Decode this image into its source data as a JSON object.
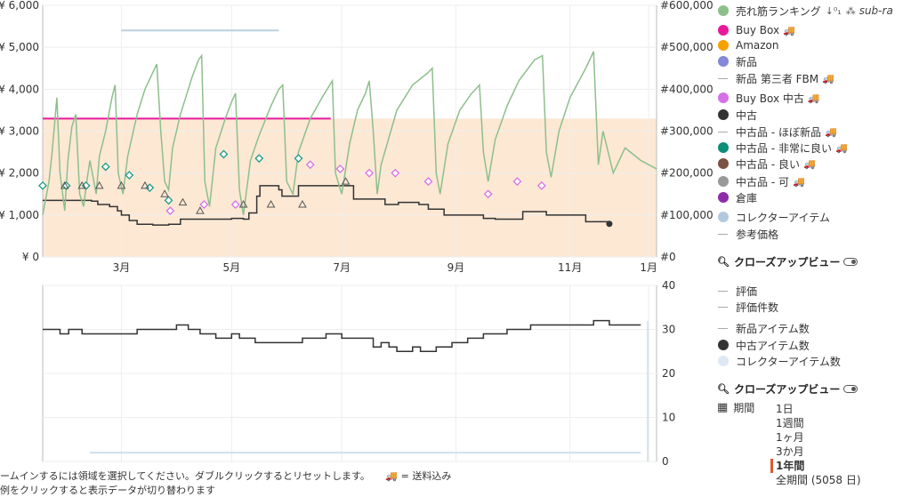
{
  "chart_data": [
    {
      "type": "line",
      "title": "",
      "x_ticks": [
        "3月",
        "5月",
        "7月",
        "9月",
        "11月",
        "1月"
      ],
      "y_left_ticks": [
        "¥ 0",
        "¥ 1,000",
        "¥ 2,000",
        "¥ 3,000",
        "¥ 4,000",
        "¥ 5,000",
        "¥ 6,000"
      ],
      "y_left_range": [
        0,
        6000
      ],
      "y_right_ticks": [
        "#0",
        "#100,000",
        "#200,000",
        "#300,000",
        "#400,000",
        "#500,000",
        "#600,000"
      ],
      "y_right_range": [
        0,
        600000
      ],
      "x_range_days": [
        0,
        366
      ],
      "grid": true,
      "series": [
        {
          "name": "Buy Box",
          "axis": "left",
          "color": "#e6199b",
          "points": [
            [
              0,
              3300
            ],
            [
              366,
              3300
            ]
          ]
        },
        {
          "name": "中古",
          "axis": "left",
          "color": "#333333",
          "points": [
            [
              0,
              1350
            ],
            [
              45,
              1350
            ],
            [
              62,
              1330
            ],
            [
              70,
              1250
            ],
            [
              85,
              1200
            ],
            [
              95,
              1100
            ],
            [
              100,
              1000
            ],
            [
              110,
              870
            ],
            [
              120,
              780
            ],
            [
              140,
              760
            ],
            [
              160,
              780
            ],
            [
              175,
              900
            ],
            [
              240,
              920
            ],
            [
              255,
              900
            ],
            [
              262,
              1050
            ],
            [
              272,
              1450
            ],
            [
              276,
              1700
            ],
            [
              300,
              1600
            ],
            [
              304,
              1450
            ],
            [
              325,
              1700
            ],
            [
              390,
              1700
            ],
            [
              395,
              1380
            ],
            [
              430,
              1380
            ],
            [
              435,
              1250
            ],
            [
              452,
              1300
            ],
            [
              478,
              1250
            ],
            [
              490,
              1140
            ],
            [
              510,
              1000
            ],
            [
              548,
              1000
            ],
            [
              560,
              920
            ],
            [
              575,
              900
            ],
            [
              605,
              900
            ],
            [
              610,
              1080
            ],
            [
              635,
              1080
            ],
            [
              640,
              1000
            ],
            [
              666,
              1000
            ],
            [
              690,
              840
            ],
            [
              720,
              790
            ]
          ]
        },
        {
          "name": "売れ筋ランキング",
          "axis": "right",
          "color": "#8dbf8b",
          "points": [
            [
              0,
              100000
            ],
            [
              8,
              180000
            ],
            [
              12,
              250000
            ],
            [
              18,
              380000
            ],
            [
              22,
              200000
            ],
            [
              28,
              110000
            ],
            [
              32,
              230000
            ],
            [
              37,
              310000
            ],
            [
              42,
              340000
            ],
            [
              47,
              150000
            ],
            [
              52,
              120000
            ],
            [
              56,
              180000
            ],
            [
              60,
              230000
            ],
            [
              68,
              150000
            ],
            [
              72,
              240000
            ],
            [
              80,
              300000
            ],
            [
              88,
              380000
            ],
            [
              92,
              410000
            ],
            [
              96,
              200000
            ],
            [
              102,
              150000
            ],
            [
              108,
              240000
            ],
            [
              120,
              340000
            ],
            [
              130,
              400000
            ],
            [
              140,
              440000
            ],
            [
              145,
              460000
            ],
            [
              150,
              300000
            ],
            [
              155,
              180000
            ],
            [
              160,
              160000
            ],
            [
              165,
              260000
            ],
            [
              175,
              340000
            ],
            [
              190,
              430000
            ],
            [
              198,
              470000
            ],
            [
              202,
              480000
            ],
            [
              206,
              180000
            ],
            [
              212,
              120000
            ],
            [
              220,
              260000
            ],
            [
              232,
              330000
            ],
            [
              240,
              370000
            ],
            [
              245,
              390000
            ],
            [
              250,
              160000
            ],
            [
              255,
              100000
            ],
            [
              264,
              230000
            ],
            [
              275,
              290000
            ],
            [
              290,
              360000
            ],
            [
              300,
              400000
            ],
            [
              305,
              410000
            ],
            [
              310,
              180000
            ],
            [
              318,
              150000
            ],
            [
              325,
              250000
            ],
            [
              340,
              330000
            ],
            [
              355,
              380000
            ],
            [
              368,
              420000
            ],
            [
              372,
              200000
            ],
            [
              380,
              150000
            ],
            [
              390,
              270000
            ],
            [
              400,
              350000
            ],
            [
              410,
              390000
            ],
            [
              415,
              420000
            ],
            [
              420,
              300000
            ],
            [
              425,
              150000
            ],
            [
              430,
              220000
            ],
            [
              450,
              350000
            ],
            [
              470,
              410000
            ],
            [
              490,
              440000
            ],
            [
              495,
              450000
            ],
            [
              500,
              200000
            ],
            [
              505,
              150000
            ],
            [
              515,
              270000
            ],
            [
              530,
              350000
            ],
            [
              545,
              390000
            ],
            [
              555,
              410000
            ],
            [
              560,
              250000
            ],
            [
              566,
              180000
            ],
            [
              575,
              280000
            ],
            [
              590,
              360000
            ],
            [
              605,
              420000
            ],
            [
              625,
              470000
            ],
            [
              635,
              480000
            ],
            [
              640,
              250000
            ],
            [
              646,
              190000
            ],
            [
              656,
              300000
            ],
            [
              670,
              380000
            ],
            [
              690,
              450000
            ],
            [
              700,
              490000
            ],
            [
              706,
              220000
            ],
            [
              712,
              300000
            ],
            [
              725,
              200000
            ],
            [
              740,
              260000
            ],
            [
              760,
              230000
            ],
            [
              780,
              210000
            ]
          ]
        },
        {
          "name": "コレクターアイテム",
          "axis": "right",
          "color": "#b8cfe0",
          "points": [
            [
              100,
              540000
            ],
            [
              300,
              540000
            ]
          ]
        }
      ],
      "markers": [
        {
          "series": "中古品 - 非常に良い",
          "color": "#1a9b86",
          "shape": "diamond",
          "points": [
            [
              0,
              1700
            ],
            [
              30,
              1700
            ],
            [
              55,
              1700
            ],
            [
              80,
              2150
            ],
            [
              110,
              1950
            ],
            [
              136,
              1650
            ],
            [
              160,
              1350
            ],
            [
              230,
              2450
            ],
            [
              275,
              2350
            ],
            [
              325,
              2350
            ]
          ]
        },
        {
          "series": "Buy Box 中古",
          "color": "#d670e8",
          "shape": "diamond",
          "points": [
            [
              162,
              1100
            ],
            [
              205,
              1250
            ],
            [
              245,
              1250
            ],
            [
              340,
              2200
            ],
            [
              378,
              2100
            ],
            [
              415,
              2000
            ],
            [
              448,
              2000
            ],
            [
              490,
              1800
            ],
            [
              566,
              1500
            ],
            [
              603,
              1800
            ],
            [
              634,
              1700
            ]
          ]
        },
        {
          "series": "中古品 - 可",
          "color": "#555555",
          "shape": "triangle",
          "points": [
            [
              28,
              1700
            ],
            [
              50,
              1700
            ],
            [
              72,
              1700
            ],
            [
              100,
              1700
            ],
            [
              130,
              1700
            ],
            [
              155,
              1500
            ],
            [
              178,
              1300
            ],
            [
              200,
              1100
            ],
            [
              255,
              1250
            ],
            [
              290,
              1250
            ],
            [
              330,
              1250
            ],
            [
              385,
              1800
            ]
          ]
        }
      ]
    },
    {
      "type": "line",
      "title": "",
      "y_right_ticks": [
        "0",
        "10",
        "20",
        "30",
        "40"
      ],
      "y_right_range": [
        0,
        40
      ],
      "series": [
        {
          "name": "中古アイテム数",
          "axis": "right",
          "color": "#333333",
          "points": [
            [
              0,
              30
            ],
            [
              20,
              30
            ],
            [
              22,
              29
            ],
            [
              30,
              29
            ],
            [
              33,
              30
            ],
            [
              50,
              29
            ],
            [
              70,
              29
            ],
            [
              90,
              29
            ],
            [
              120,
              30
            ],
            [
              140,
              30
            ],
            [
              170,
              31
            ],
            [
              185,
              30
            ],
            [
              200,
              29
            ],
            [
              220,
              28
            ],
            [
              240,
              29
            ],
            [
              250,
              28
            ],
            [
              270,
              27
            ],
            [
              300,
              27
            ],
            [
              330,
              28
            ],
            [
              360,
              29
            ],
            [
              380,
              28
            ],
            [
              395,
              28
            ],
            [
              410,
              28
            ],
            [
              420,
              26
            ],
            [
              430,
              27
            ],
            [
              440,
              26
            ],
            [
              450,
              25
            ],
            [
              470,
              26
            ],
            [
              480,
              25
            ],
            [
              500,
              26
            ],
            [
              520,
              27
            ],
            [
              540,
              28
            ],
            [
              560,
              29
            ],
            [
              590,
              30
            ],
            [
              620,
              31
            ],
            [
              650,
              31
            ],
            [
              680,
              31
            ],
            [
              700,
              32
            ],
            [
              720,
              31
            ],
            [
              740,
              31
            ],
            [
              760,
              31
            ]
          ]
        },
        {
          "name": "コレクターアイテム数",
          "axis": "right",
          "color": "#cfdff0",
          "points": [
            [
              60,
              2
            ],
            [
              760,
              2
            ]
          ]
        }
      ]
    }
  ],
  "legend": {
    "items": [
      {
        "label": "売れ筋ランキング",
        "kind": "dot",
        "color": "#8dbf8b",
        "extra": "sub-ra"
      },
      {
        "label": "Buy Box",
        "kind": "dot",
        "color": "#e6199b",
        "truck": true
      },
      {
        "label": "Amazon",
        "kind": "dot",
        "color": "#f5a100"
      },
      {
        "label": "新品",
        "kind": "dot",
        "color": "#8388d8"
      },
      {
        "label": "新品 第三者 FBM",
        "kind": "line",
        "color": "#aaaaaa",
        "truck": true
      },
      {
        "label": "Buy Box 中古",
        "kind": "dot",
        "color": "#d670e8",
        "truck": true
      },
      {
        "label": "中古",
        "kind": "dot",
        "color": "#333333"
      },
      {
        "label": "中古品 - ほぼ新品",
        "kind": "line",
        "color": "#aaaaaa",
        "truck": true
      },
      {
        "label": "中古品 - 非常に良い",
        "kind": "dot",
        "color": "#0d8f77",
        "truck": true
      },
      {
        "label": "中古品 - 良い",
        "kind": "dot",
        "color": "#7a5343",
        "truck": true
      },
      {
        "label": "中古品 - 可",
        "kind": "dot",
        "color": "#999999",
        "truck": true
      },
      {
        "label": "倉庫",
        "kind": "dot",
        "color": "#8e2ba8"
      },
      {
        "label": "コレクターアイテム",
        "kind": "dot",
        "color": "#b3c9dd"
      },
      {
        "label": "参考価格",
        "kind": "line",
        "color": "#aaaaaa"
      }
    ],
    "closeup1": "クローズアップビュー",
    "items2": [
      {
        "label": "評価",
        "kind": "line",
        "color": "#aaaaaa"
      },
      {
        "label": "評価件数",
        "kind": "line",
        "color": "#aaaaaa"
      },
      {
        "label": "新品アイテム数",
        "kind": "line",
        "color": "#aaaaaa"
      },
      {
        "label": "中古アイテム数",
        "kind": "dot",
        "color": "#333333"
      },
      {
        "label": "コレクターアイテム数",
        "kind": "dot",
        "color": "#dde8f4"
      }
    ],
    "closeup2": "クローズアップビュー"
  },
  "period": {
    "label": "期間",
    "options": [
      "1日",
      "1週間",
      "1ヶ月",
      "3か月",
      "1年間",
      "全期間 (5058 日)"
    ],
    "selected_index": 4
  },
  "footer": {
    "hint": "ームインするには領域を選択してください。ダブルクリックするとリセットします。",
    "shipping_note": "= 送料込み",
    "hint2": "例をクリックすると表示データが切り替わります"
  }
}
